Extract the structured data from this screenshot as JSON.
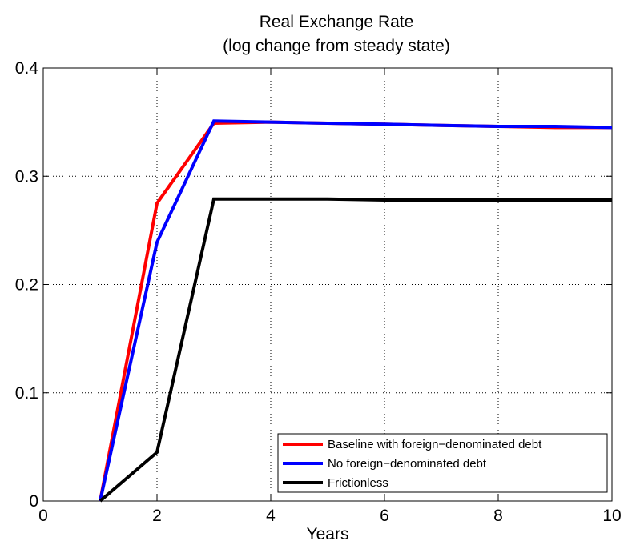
{
  "chart_data": {
    "type": "line",
    "title": [
      "Real Exchange Rate",
      "(log change from steady state)"
    ],
    "xlabel": "Years",
    "ylabel": "",
    "xlim": [
      0,
      10
    ],
    "ylim": [
      0,
      0.4
    ],
    "xticks": [
      0,
      2,
      4,
      6,
      8,
      10
    ],
    "xtick_labels": [
      "0",
      "2",
      "4",
      "6",
      "8",
      "10"
    ],
    "yticks": [
      0,
      0.1,
      0.2,
      0.3,
      0.4
    ],
    "ytick_labels": [
      "0",
      "0.1",
      "0.2",
      "0.3",
      "0.4"
    ],
    "grid": true,
    "legend_position": "bottom-right",
    "series": [
      {
        "name": "Baseline with foreign−denominated debt",
        "color": "#ff0000",
        "x": [
          1,
          2,
          3,
          4,
          5,
          6,
          7,
          8,
          9,
          10
        ],
        "y": [
          0,
          0.275,
          0.349,
          0.35,
          0.349,
          0.348,
          0.347,
          0.346,
          0.345,
          0.345
        ]
      },
      {
        "name": "No foreign−denominated debt",
        "color": "#0000ff",
        "x": [
          1,
          2,
          3,
          4,
          5,
          6,
          7,
          8,
          9,
          10
        ],
        "y": [
          0,
          0.239,
          0.351,
          0.35,
          0.349,
          0.348,
          0.347,
          0.346,
          0.346,
          0.345
        ]
      },
      {
        "name": "Frictionless",
        "color": "#000000",
        "x": [
          1,
          2,
          3,
          4,
          5,
          6,
          7,
          8,
          9,
          10
        ],
        "y": [
          0,
          0.045,
          0.279,
          0.279,
          0.279,
          0.278,
          0.278,
          0.278,
          0.278,
          0.278
        ]
      }
    ]
  }
}
